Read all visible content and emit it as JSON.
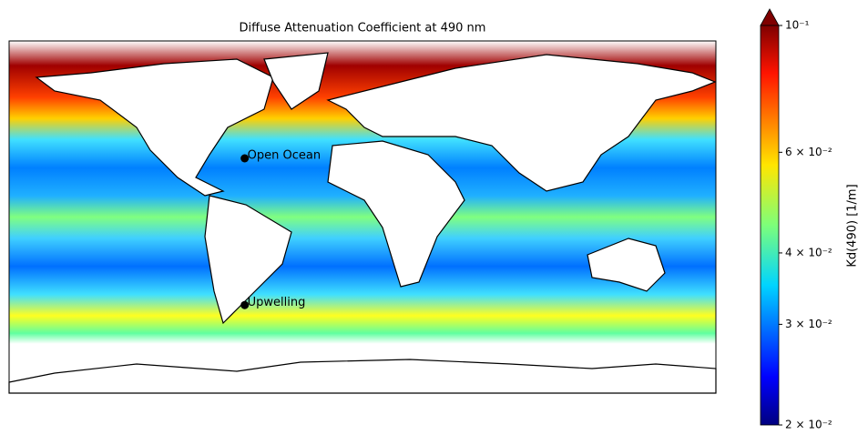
{
  "chart_data": {
    "type": "map",
    "title": "Diffuse Attenuation Coefficient at 490 nm",
    "xlim": [
      -180,
      180
    ],
    "ylim": [
      -90,
      90
    ],
    "points": [
      {
        "label": "Open Ocean",
        "lon": -60,
        "lat": 30,
        "color": "#000000"
      },
      {
        "label": "Upwelling",
        "lon": -60,
        "lat": -45,
        "color": "#000000"
      }
    ],
    "colorbar": {
      "label": "Kd(490) [1/m]",
      "scale": "log",
      "colormap": "jet",
      "extend": "max",
      "lim": [
        0.02,
        0.1
      ],
      "ticks": [
        {
          "value": 0.02,
          "label": "2 × 10⁻²"
        },
        {
          "value": 0.03,
          "label": "3 × 10⁻²"
        },
        {
          "value": 0.04,
          "label": "4 × 10⁻²"
        },
        {
          "value": 0.06,
          "label": "6 × 10⁻²"
        },
        {
          "value": 0.1,
          "label": "10⁻¹"
        }
      ]
    }
  }
}
